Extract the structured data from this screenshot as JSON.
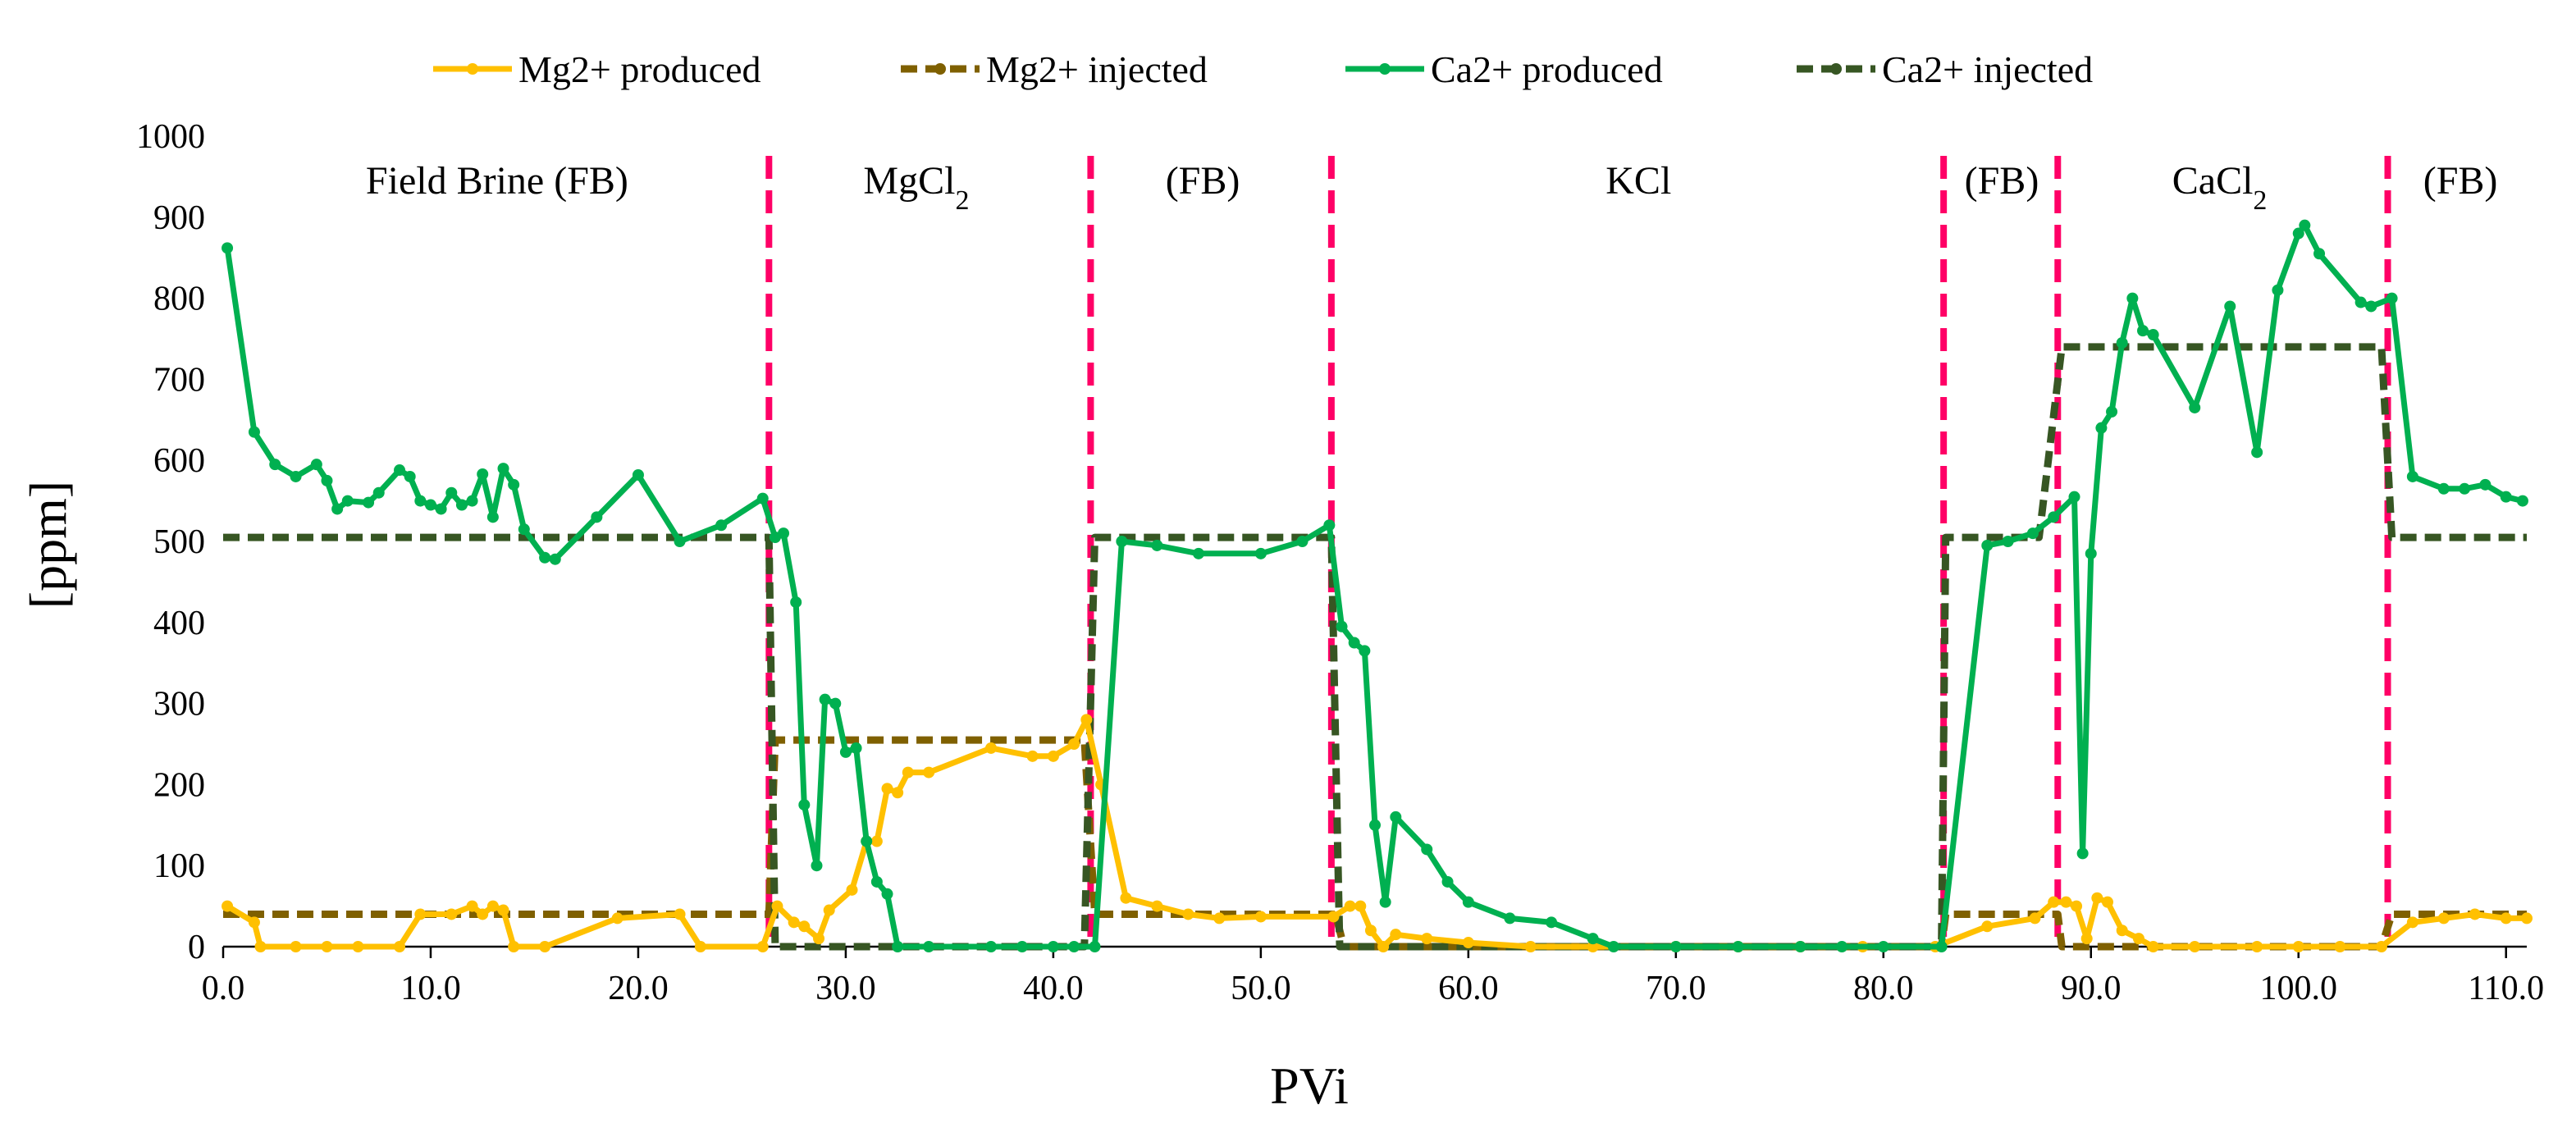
{
  "chart_data": {
    "type": "line",
    "title": "",
    "xlabel": "PVi",
    "ylabel": "[ppm]",
    "xlim": [
      0,
      111
    ],
    "ylim": [
      0,
      1000
    ],
    "xticks": [
      "0.0",
      "10.0",
      "20.0",
      "30.0",
      "40.0",
      "50.0",
      "60.0",
      "70.0",
      "80.0",
      "90.0",
      "100.0",
      "110.0"
    ],
    "yticks": [
      "0",
      "100",
      "200",
      "300",
      "400",
      "500",
      "600",
      "700",
      "800",
      "900",
      "1000"
    ],
    "grid": false,
    "legend_position": "top",
    "phase_boundaries": [
      26.3,
      41.8,
      53.4,
      82.9,
      88.4,
      104.3
    ],
    "phase_labels": [
      {
        "text": "Field Brine (FB)",
        "x": 13.2
      },
      {
        "text": "MgCl",
        "sub": "2",
        "x": 33.4
      },
      {
        "text": "(FB)",
        "x": 47.2
      },
      {
        "text": "KCl",
        "x": 68.2
      },
      {
        "text": "(FB)",
        "x": 85.7
      },
      {
        "text": "CaCl",
        "sub": "2",
        "x": 96.2
      },
      {
        "text": "(FB)",
        "x": 107.8
      }
    ],
    "series": [
      {
        "name": "Mg2+ produced",
        "color": "#FFC000",
        "style": "solid-marker",
        "points": [
          [
            0.2,
            50
          ],
          [
            1.5,
            30
          ],
          [
            1.8,
            0
          ],
          [
            3.5,
            0
          ],
          [
            5,
            0
          ],
          [
            6.5,
            0
          ],
          [
            8.5,
            0
          ],
          [
            9.5,
            40
          ],
          [
            11,
            40
          ],
          [
            12,
            50
          ],
          [
            12.5,
            40
          ],
          [
            13,
            50
          ],
          [
            13.5,
            45
          ],
          [
            14,
            0
          ],
          [
            15.5,
            0
          ],
          [
            19,
            35
          ],
          [
            22,
            40
          ],
          [
            23,
            0
          ],
          [
            26,
            0
          ],
          [
            26.7,
            50
          ],
          [
            27.5,
            30
          ],
          [
            28,
            25
          ],
          [
            28.7,
            10
          ],
          [
            29.2,
            45
          ],
          [
            30.3,
            70
          ],
          [
            31,
            130
          ],
          [
            31.5,
            130
          ],
          [
            32,
            195
          ],
          [
            32.5,
            190
          ],
          [
            33,
            215
          ],
          [
            34,
            215
          ],
          [
            37,
            245
          ],
          [
            39,
            235
          ],
          [
            40,
            235
          ],
          [
            41,
            250
          ],
          [
            41.6,
            280
          ],
          [
            42.3,
            200
          ],
          [
            43.5,
            60
          ],
          [
            45,
            50
          ],
          [
            46.5,
            40
          ],
          [
            48,
            35
          ],
          [
            50,
            37
          ],
          [
            53.5,
            37
          ],
          [
            54.3,
            50
          ],
          [
            54.8,
            50
          ],
          [
            55.3,
            20
          ],
          [
            55.9,
            0
          ],
          [
            56.5,
            15
          ],
          [
            58,
            10
          ],
          [
            60,
            5
          ],
          [
            63,
            0
          ],
          [
            66,
            0
          ],
          [
            70,
            0
          ],
          [
            73,
            0
          ],
          [
            76,
            0
          ],
          [
            79,
            0
          ],
          [
            82.5,
            0
          ],
          [
            85,
            25
          ],
          [
            87.3,
            35
          ],
          [
            88.2,
            55
          ],
          [
            88.8,
            55
          ],
          [
            89.3,
            50
          ],
          [
            89.8,
            10
          ],
          [
            90.3,
            60
          ],
          [
            90.8,
            55
          ],
          [
            91.5,
            20
          ],
          [
            92.3,
            10
          ],
          [
            93,
            0
          ],
          [
            95,
            0
          ],
          [
            98,
            0
          ],
          [
            100,
            0
          ],
          [
            102,
            0
          ],
          [
            104,
            0
          ],
          [
            105.5,
            30
          ],
          [
            107,
            35
          ],
          [
            108.5,
            40
          ],
          [
            110,
            35
          ],
          [
            111,
            35
          ]
        ]
      },
      {
        "name": "Mg2+ injected",
        "color": "#7F6000",
        "style": "dashed",
        "points": [
          [
            0,
            40
          ],
          [
            26.3,
            40
          ],
          [
            26.6,
            255
          ],
          [
            41.5,
            255
          ],
          [
            42,
            40
          ],
          [
            53.6,
            40
          ],
          [
            54,
            0
          ],
          [
            82.8,
            0
          ],
          [
            83,
            40
          ],
          [
            88.4,
            40
          ],
          [
            88.6,
            0
          ],
          [
            104,
            0
          ],
          [
            104.5,
            40
          ],
          [
            111,
            40
          ]
        ]
      },
      {
        "name": "Ca2+ produced",
        "color": "#00B050",
        "style": "solid-marker",
        "points": [
          [
            0.2,
            862
          ],
          [
            1.5,
            635
          ],
          [
            2.5,
            595
          ],
          [
            3.5,
            580
          ],
          [
            4.5,
            595
          ],
          [
            5,
            575
          ],
          [
            5.5,
            540
          ],
          [
            6,
            550
          ],
          [
            7,
            548
          ],
          [
            7.5,
            560
          ],
          [
            8.5,
            588
          ],
          [
            9,
            580
          ],
          [
            9.5,
            550
          ],
          [
            10,
            545
          ],
          [
            10.5,
            540
          ],
          [
            11,
            560
          ],
          [
            11.5,
            545
          ],
          [
            12,
            550
          ],
          [
            12.5,
            583
          ],
          [
            13,
            530
          ],
          [
            13.5,
            590
          ],
          [
            14,
            570
          ],
          [
            14.5,
            515
          ],
          [
            15.5,
            480
          ],
          [
            16,
            478
          ],
          [
            18,
            530
          ],
          [
            20,
            582
          ],
          [
            22,
            500
          ],
          [
            24,
            520
          ],
          [
            26,
            553
          ],
          [
            26.6,
            505
          ],
          [
            27,
            510
          ],
          [
            27.6,
            425
          ],
          [
            28,
            175
          ],
          [
            28.6,
            100
          ],
          [
            29,
            305
          ],
          [
            29.5,
            300
          ],
          [
            30,
            240
          ],
          [
            30.5,
            245
          ],
          [
            31,
            130
          ],
          [
            31.5,
            80
          ],
          [
            32,
            65
          ],
          [
            32.5,
            0
          ],
          [
            34,
            0
          ],
          [
            37,
            0
          ],
          [
            38.5,
            0
          ],
          [
            40,
            0
          ],
          [
            41,
            0
          ],
          [
            42,
            0
          ],
          [
            43.3,
            500
          ],
          [
            45,
            495
          ],
          [
            47,
            485
          ],
          [
            50,
            485
          ],
          [
            52,
            500
          ],
          [
            53.3,
            520
          ],
          [
            53.9,
            395
          ],
          [
            54.5,
            375
          ],
          [
            55,
            365
          ],
          [
            55.5,
            150
          ],
          [
            56,
            55
          ],
          [
            56.5,
            160
          ],
          [
            58,
            120
          ],
          [
            59,
            80
          ],
          [
            60,
            55
          ],
          [
            62,
            35
          ],
          [
            64,
            30
          ],
          [
            66,
            10
          ],
          [
            67,
            0
          ],
          [
            70,
            0
          ],
          [
            73,
            0
          ],
          [
            76,
            0
          ],
          [
            78,
            0
          ],
          [
            80,
            0
          ],
          [
            82.8,
            0
          ],
          [
            85,
            495
          ],
          [
            86,
            500
          ],
          [
            87.2,
            510
          ],
          [
            88.2,
            530
          ],
          [
            89.2,
            555
          ],
          [
            89.6,
            115
          ],
          [
            90,
            485
          ],
          [
            90.5,
            640
          ],
          [
            91,
            660
          ],
          [
            91.5,
            745
          ],
          [
            92,
            800
          ],
          [
            92.5,
            760
          ],
          [
            93,
            755
          ],
          [
            95,
            665
          ],
          [
            96.7,
            790
          ],
          [
            98,
            610
          ],
          [
            99,
            810
          ],
          [
            100,
            880
          ],
          [
            100.3,
            890
          ],
          [
            101,
            855
          ],
          [
            103,
            795
          ],
          [
            103.5,
            790
          ],
          [
            104.5,
            800
          ],
          [
            105.5,
            580
          ],
          [
            107,
            565
          ],
          [
            108,
            565
          ],
          [
            109,
            570
          ],
          [
            110,
            555
          ],
          [
            110.8,
            550
          ]
        ]
      },
      {
        "name": "Ca2+ injected",
        "color": "#375623",
        "style": "dashed",
        "points": [
          [
            0,
            505
          ],
          [
            26.3,
            505
          ],
          [
            26.6,
            0
          ],
          [
            41.5,
            0
          ],
          [
            42,
            505
          ],
          [
            53.4,
            505
          ],
          [
            53.8,
            0
          ],
          [
            82.8,
            0
          ],
          [
            83,
            505
          ],
          [
            87.5,
            505
          ],
          [
            88.6,
            740
          ],
          [
            104,
            740
          ],
          [
            104.5,
            505
          ],
          [
            111,
            505
          ]
        ]
      }
    ]
  }
}
